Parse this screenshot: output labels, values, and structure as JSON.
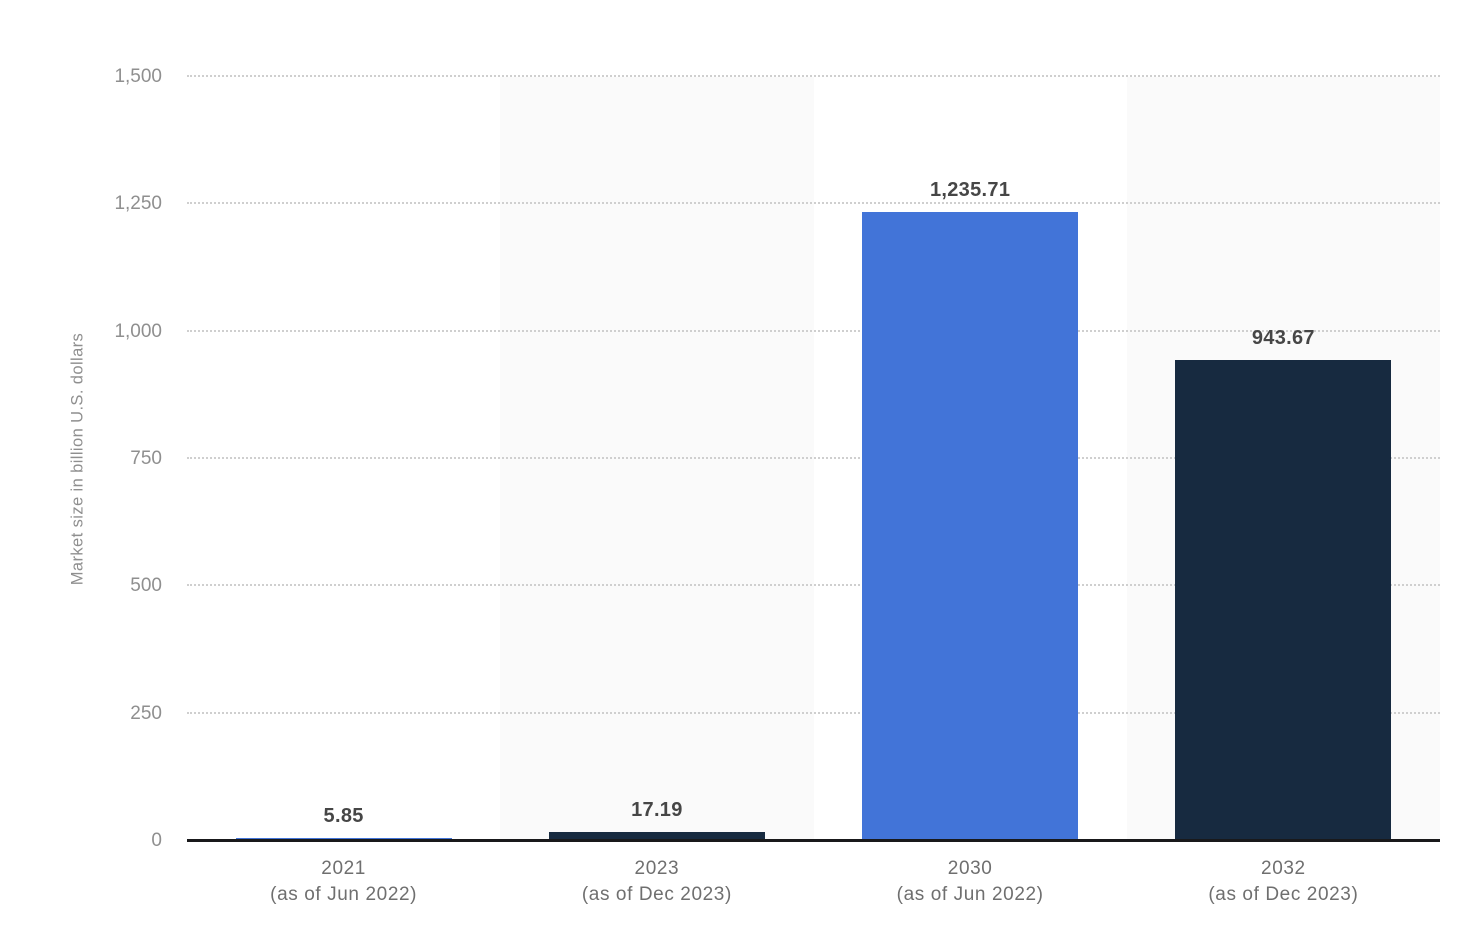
{
  "chart_data": {
    "type": "bar",
    "title": "",
    "xlabel": "",
    "ylabel": "Market size in billion U.S. dollars",
    "ylim": [
      0,
      1500
    ],
    "ytick_step": 250,
    "ytick_labels": [
      "0",
      "250",
      "500",
      "750",
      "1,000",
      "1,250",
      "1,500"
    ],
    "grid": "horizontal-dotted",
    "legend_position": "none",
    "categories": [
      {
        "line1": "2021",
        "line2": "(as of Jun 2022)"
      },
      {
        "line1": "2023",
        "line2": "(as of Dec 2023)"
      },
      {
        "line1": "2030",
        "line2": "(as of Jun 2022)"
      },
      {
        "line1": "2032",
        "line2": "(as of Dec 2023)"
      }
    ],
    "values": [
      5.85,
      17.19,
      1235.71,
      943.67
    ],
    "value_labels": [
      "5.85",
      "17.19",
      "1,235.71",
      "943.67"
    ],
    "bar_colors": [
      "#4274d8",
      "#172a40",
      "#4274d8",
      "#172a40"
    ],
    "column_stripe_flags": [
      false,
      true,
      false,
      true
    ]
  },
  "colors": {
    "bar_blue": "#4274d8",
    "bar_navy": "#172a40",
    "column_stripe": "#fafafa",
    "gridline": "#cfcfcf",
    "axis_line": "#19191b",
    "tick_text": "#8f8f8f",
    "category_text": "#6f6f6f",
    "value_label_text": "#464646",
    "background": "#ffffff"
  }
}
